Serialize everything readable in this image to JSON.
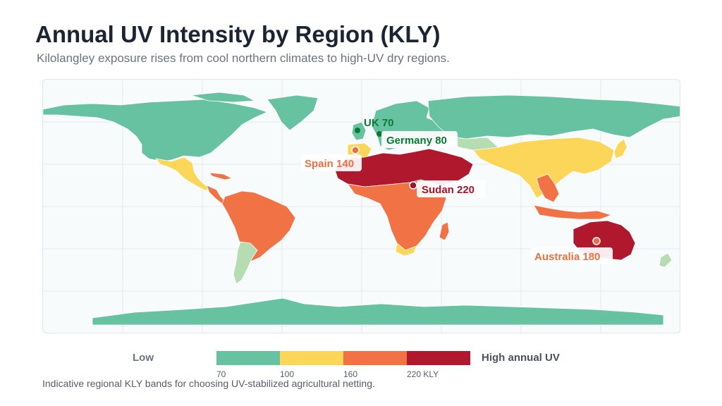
{
  "title": "Annual UV Intensity by Region (KLY)",
  "subtitle": "Kilolangley exposure rises from cool northern climates to high-UV dry regions.",
  "footnote": "Indicative regional KLY bands for choosing UV-stabilized agricultural netting.",
  "colors": {
    "band_low": "#66c2a0",
    "band_mid": "#fcd659",
    "band_high": "#f07245",
    "band_extreme": "#b0182d",
    "band_mild": "#b6dcb2",
    "water": "#f7fbfc",
    "label_green": "#0a7a33",
    "label_orange": "#ec6f3f",
    "label_red": "#a3152a"
  },
  "legend": {
    "low_label": "Low",
    "high_label": "High annual UV",
    "ticks": [
      "70",
      "100",
      "160",
      "220 KLY"
    ],
    "bands": [
      "#66c2a0",
      "#fcd659",
      "#f07245",
      "#b0182d"
    ]
  },
  "markers": [
    {
      "name": "uk",
      "label": "UK 70",
      "value": 70,
      "color": "#0a7a33"
    },
    {
      "name": "germany",
      "label": "Germany 80",
      "value": 80,
      "color": "#0a7a33"
    },
    {
      "name": "spain",
      "label": "Spain 140",
      "value": 140,
      "color": "#ec6f3f"
    },
    {
      "name": "sudan",
      "label": "Sudan 220",
      "value": 220,
      "color": "#a3152a"
    },
    {
      "name": "australia",
      "label": "Australia 180",
      "value": 180,
      "color": "#ec6f3f"
    }
  ]
}
